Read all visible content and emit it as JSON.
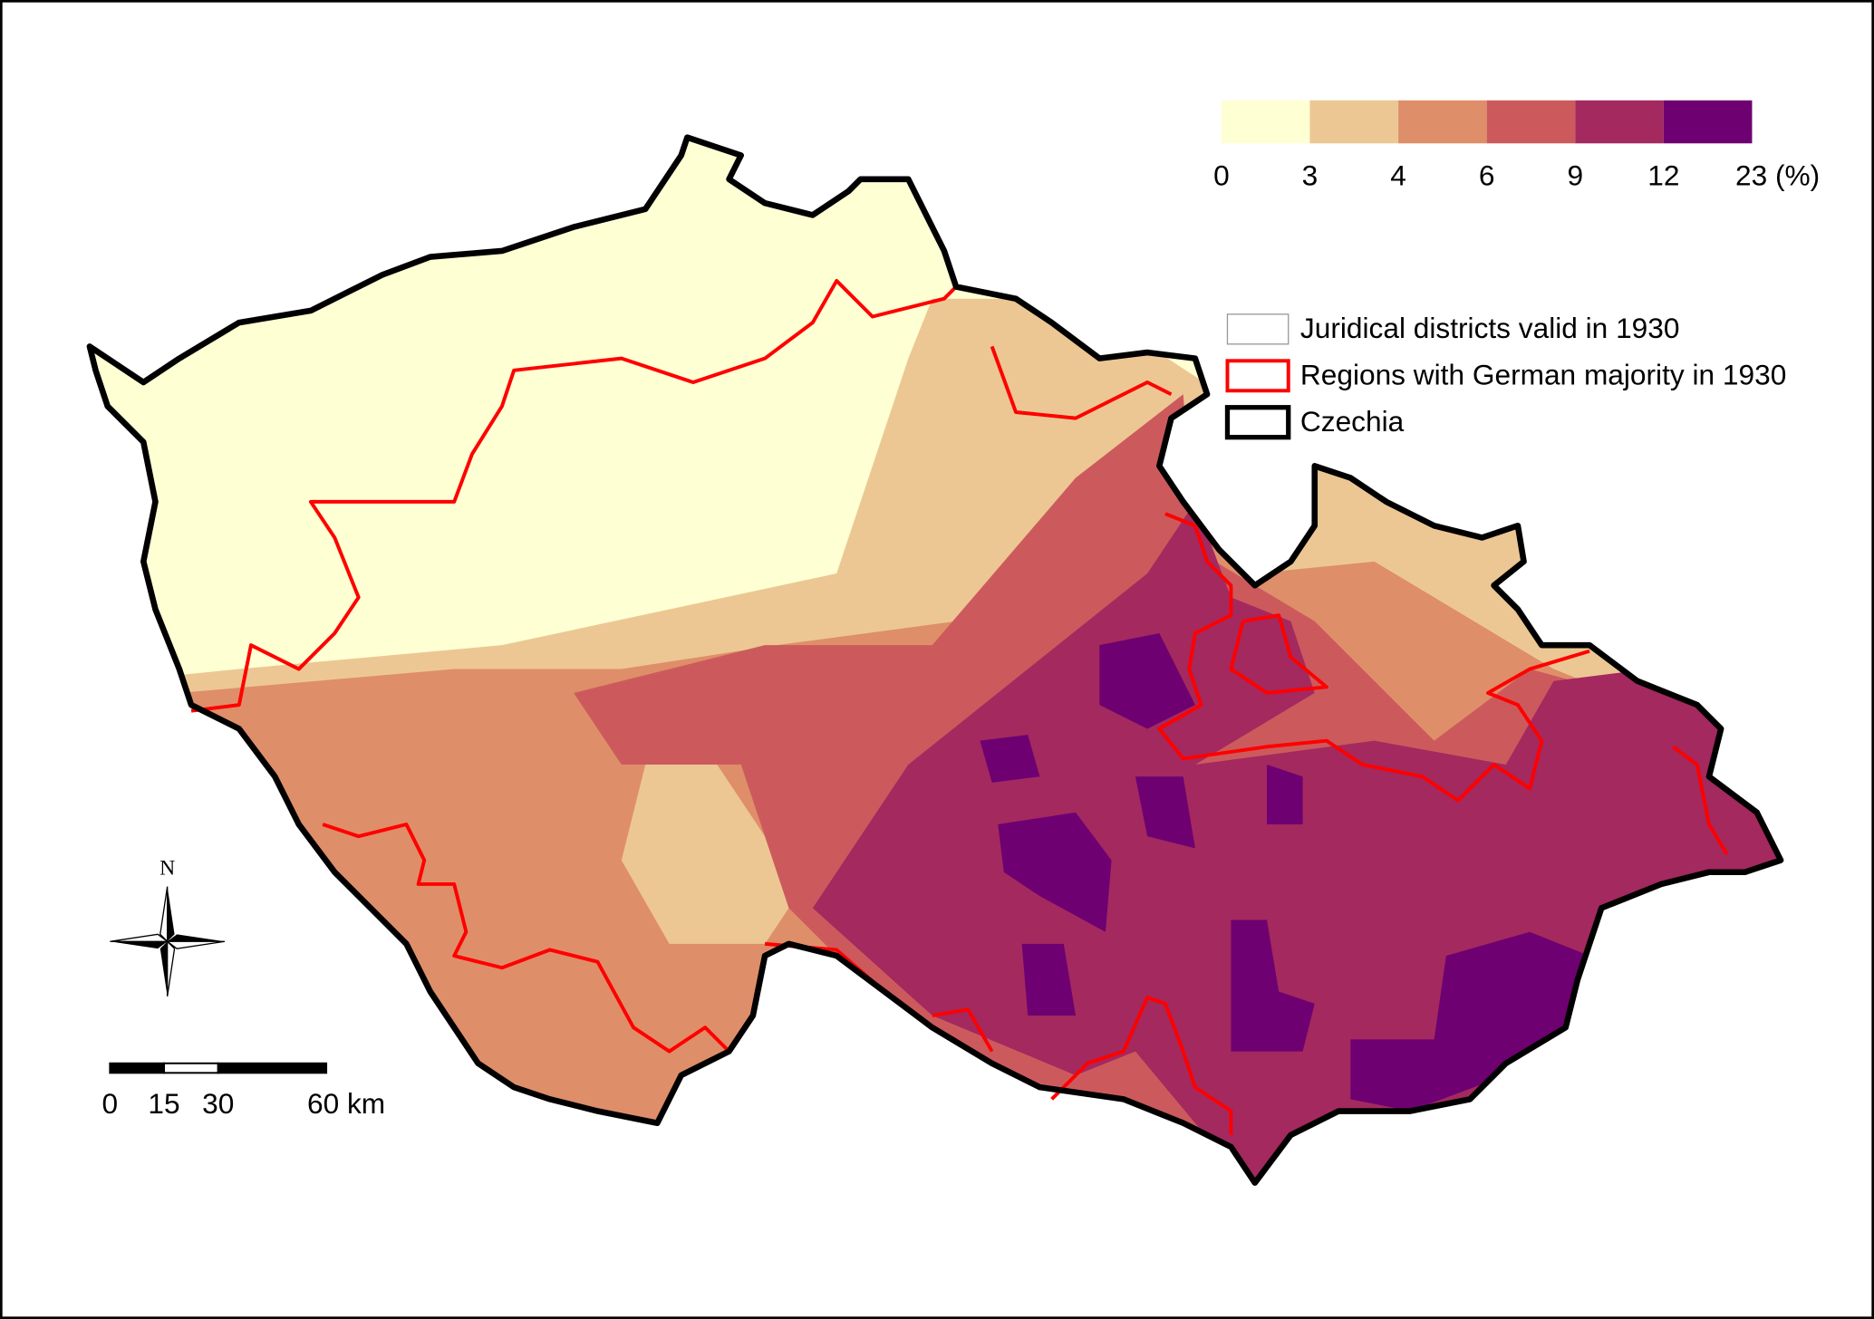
{
  "legend": {
    "colors": [
      "#ffffd4",
      "#ecc794",
      "#df8e6a",
      "#cc5a5d",
      "#a3295f",
      "#6e0071"
    ],
    "breaks": [
      0,
      3,
      4,
      6,
      9,
      12,
      {
        "value": 23,
        "label": "23 (%)"
      }
    ]
  },
  "layers": [
    {
      "label": "Juridical districts valid in 1930"
    },
    {
      "label": "Regions with German majority in 1930"
    },
    {
      "label": "Czechia"
    }
  ],
  "north_arrow": {
    "label": "N"
  },
  "scale_bar": {
    "ticks": [
      0,
      15,
      30,
      {
        "value": 60,
        "label": "60 km"
      }
    ]
  }
}
